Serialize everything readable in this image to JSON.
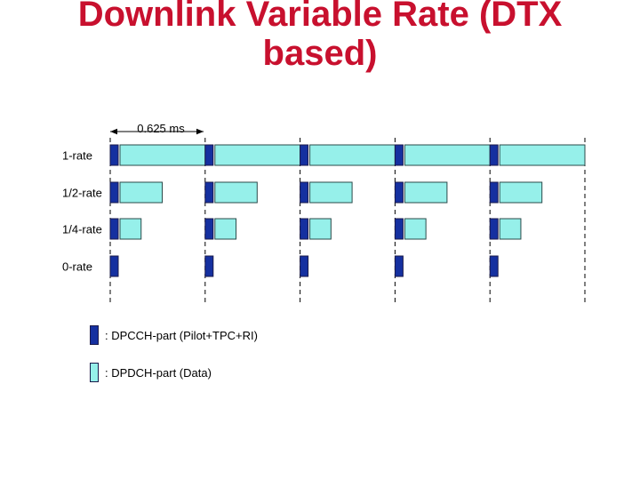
{
  "title": {
    "line1": "Downlink Variable Rate (DTX",
    "line2": "based)"
  },
  "duration_label": "0.625 ms",
  "colors": {
    "dpcch": "#1530a0",
    "dpdch": "#96f0ea",
    "title": "#c8102e"
  },
  "rows": [
    {
      "label": "1-rate",
      "fraction": 1.0
    },
    {
      "label": "1/2-rate",
      "fraction": 0.5
    },
    {
      "label": "1/4-rate",
      "fraction": 0.25
    },
    {
      "label": "0-rate",
      "fraction": 0
    }
  ],
  "slot_count": 5,
  "legend": [
    {
      "key": "dpcch",
      "text": ": DPCCH-part (Pilot+TPC+RI)"
    },
    {
      "key": "dpdch",
      "text": ": DPDCH-part (Data)"
    }
  ]
}
